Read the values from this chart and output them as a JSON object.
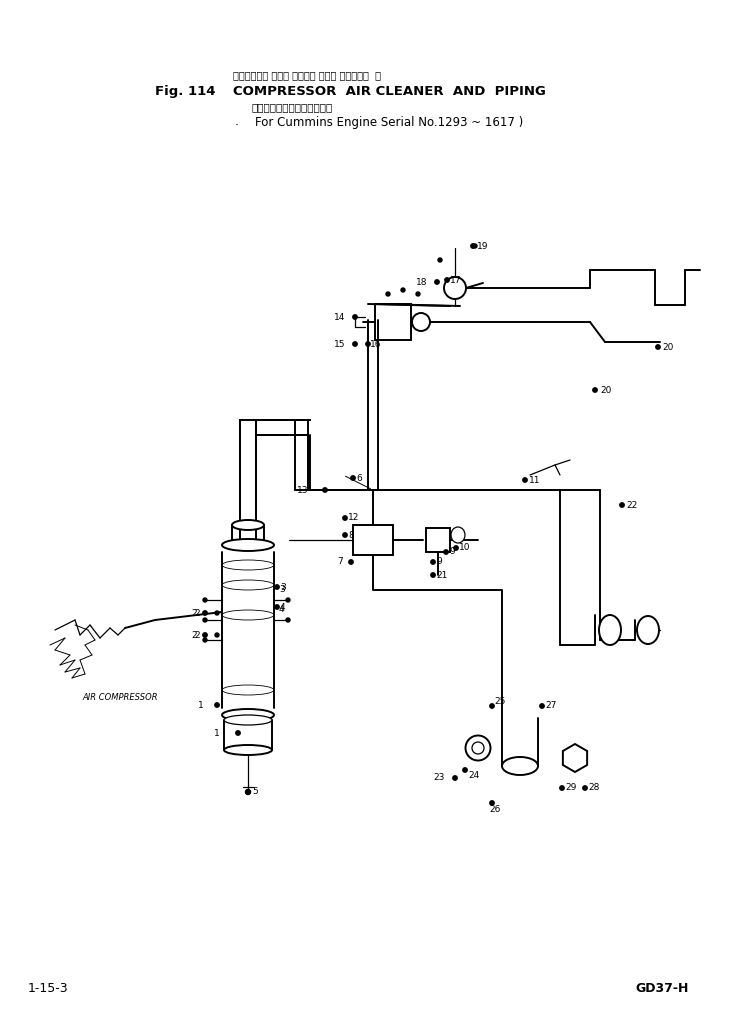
{
  "title_japanese": "コンプレッサ エアー クリーナ および パイピング  ・",
  "title_english": "COMPRESSOR  AIR CLEANER  AND  PIPING",
  "subtitle_japanese": "カミンズエンジン用適用号機",
  "subtitle_english": "For Cummins Engine Serial No.1293 ~ 1617",
  "fig_label": "Fig. 114",
  "bottom_left": "1-15-3",
  "bottom_right": "GD37-H",
  "bg_color": "#ffffff",
  "line_color": "#000000",
  "fig_width": 7.33,
  "fig_height": 10.19,
  "dpi": 100,
  "subtitle_paren": ")",
  "dot_label": ".",
  "air_compressor_label": "AIR COMPRESSOR"
}
